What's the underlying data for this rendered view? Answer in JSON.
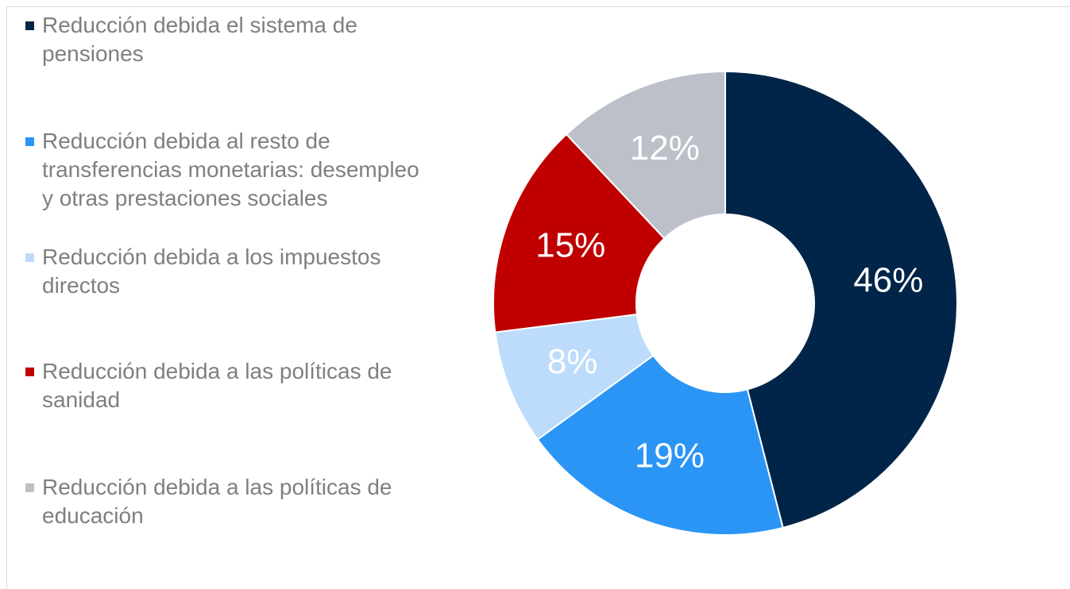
{
  "chart_data": {
    "type": "donut",
    "categories": [
      "Reducción debida el sistema de pensiones",
      "Reducción debida al resto de transferencias monetarias: desempleo y otras prestaciones sociales",
      "Reducción debida a los impuestos directos",
      "Reducción debida a las políticas de sanidad",
      "Reducción debida a las políticas de educación"
    ],
    "values": [
      46,
      19,
      8,
      15,
      12
    ],
    "value_labels": [
      "46%",
      "19%",
      "8%",
      "15%",
      "12%"
    ],
    "colors": [
      "#002548",
      "#2b95f6",
      "#bddcfb",
      "#c00000",
      "#bcc1c9"
    ],
    "legend": "left"
  }
}
